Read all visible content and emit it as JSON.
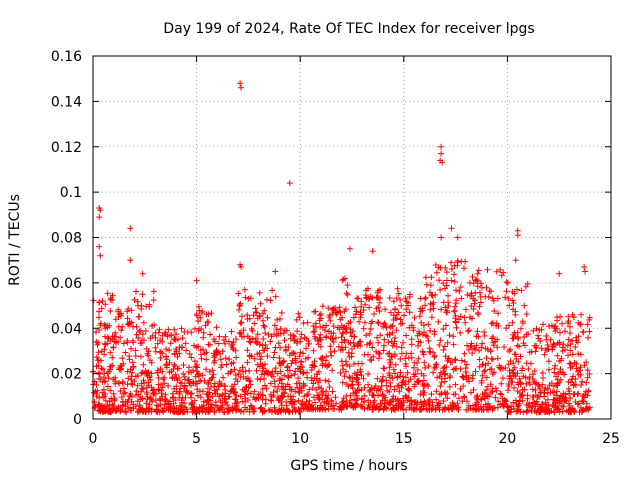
{
  "chart_data": {
    "type": "scatter",
    "title": "Day 199 of 2024, Rate Of TEC Index for receiver lpgs",
    "xlabel": "GPS time / hours",
    "ylabel": "ROTI / TECUs",
    "xlim": [
      0,
      25
    ],
    "ylim": [
      0,
      0.16
    ],
    "xticks": [
      0,
      5,
      10,
      15,
      20,
      25
    ],
    "xtick_labels": [
      "0",
      "5",
      "10",
      "15",
      "20",
      "25"
    ],
    "yticks": [
      0,
      0.02,
      0.04,
      0.06,
      0.08,
      0.1,
      0.12,
      0.14,
      0.16
    ],
    "ytick_labels": [
      "0",
      "0.02",
      "0.04",
      "0.06",
      "0.08",
      "0.1",
      "0.12",
      "0.14",
      "0.16"
    ],
    "grid": true,
    "marker": "+",
    "series": [
      {
        "name": "ROTI",
        "color": "#ff0000",
        "x_range_hours": [
          0,
          24
        ],
        "notable_points": [
          {
            "x": 0.3,
            "y": 0.093
          },
          {
            "x": 0.35,
            "y": 0.092
          },
          {
            "x": 0.3,
            "y": 0.089
          },
          {
            "x": 0.3,
            "y": 0.076
          },
          {
            "x": 0.35,
            "y": 0.072
          },
          {
            "x": 1.8,
            "y": 0.084
          },
          {
            "x": 1.8,
            "y": 0.07
          },
          {
            "x": 2.4,
            "y": 0.064
          },
          {
            "x": 5.0,
            "y": 0.061
          },
          {
            "x": 7.1,
            "y": 0.148
          },
          {
            "x": 7.15,
            "y": 0.146
          },
          {
            "x": 7.1,
            "y": 0.068
          },
          {
            "x": 7.15,
            "y": 0.067
          },
          {
            "x": 8.8,
            "y": 0.065
          },
          {
            "x": 9.5,
            "y": 0.104
          },
          {
            "x": 12.4,
            "y": 0.075
          },
          {
            "x": 13.5,
            "y": 0.074
          },
          {
            "x": 16.8,
            "y": 0.12
          },
          {
            "x": 16.8,
            "y": 0.117
          },
          {
            "x": 16.75,
            "y": 0.114
          },
          {
            "x": 16.85,
            "y": 0.113
          },
          {
            "x": 16.8,
            "y": 0.08
          },
          {
            "x": 17.3,
            "y": 0.084
          },
          {
            "x": 17.6,
            "y": 0.08
          },
          {
            "x": 20.5,
            "y": 0.083
          },
          {
            "x": 20.5,
            "y": 0.081
          },
          {
            "x": 20.4,
            "y": 0.07
          },
          {
            "x": 22.5,
            "y": 0.064
          },
          {
            "x": 23.7,
            "y": 0.067
          },
          {
            "x": 23.75,
            "y": 0.065
          }
        ],
        "band_profile": [
          {
            "x_start": 0,
            "x_end": 1,
            "min": 0.003,
            "max": 0.056
          },
          {
            "x_start": 1,
            "x_end": 2,
            "min": 0.003,
            "max": 0.05
          },
          {
            "x_start": 2,
            "x_end": 3,
            "min": 0.003,
            "max": 0.057
          },
          {
            "x_start": 3,
            "x_end": 5,
            "min": 0.003,
            "max": 0.04
          },
          {
            "x_start": 5,
            "x_end": 6,
            "min": 0.003,
            "max": 0.05
          },
          {
            "x_start": 6,
            "x_end": 7,
            "min": 0.003,
            "max": 0.04
          },
          {
            "x_start": 7,
            "x_end": 9,
            "min": 0.003,
            "max": 0.057
          },
          {
            "x_start": 9,
            "x_end": 10,
            "min": 0.003,
            "max": 0.047
          },
          {
            "x_start": 10,
            "x_end": 12,
            "min": 0.004,
            "max": 0.05
          },
          {
            "x_start": 12,
            "x_end": 13,
            "min": 0.005,
            "max": 0.062
          },
          {
            "x_start": 13,
            "x_end": 15,
            "min": 0.004,
            "max": 0.058
          },
          {
            "x_start": 15,
            "x_end": 16,
            "min": 0.004,
            "max": 0.055
          },
          {
            "x_start": 16,
            "x_end": 17,
            "min": 0.004,
            "max": 0.068
          },
          {
            "x_start": 17,
            "x_end": 18,
            "min": 0.004,
            "max": 0.07
          },
          {
            "x_start": 18,
            "x_end": 20,
            "min": 0.004,
            "max": 0.066
          },
          {
            "x_start": 20,
            "x_end": 21,
            "min": 0.003,
            "max": 0.06
          },
          {
            "x_start": 21,
            "x_end": 22,
            "min": 0.003,
            "max": 0.045
          },
          {
            "x_start": 22,
            "x_end": 24,
            "min": 0.003,
            "max": 0.046
          }
        ]
      }
    ]
  }
}
